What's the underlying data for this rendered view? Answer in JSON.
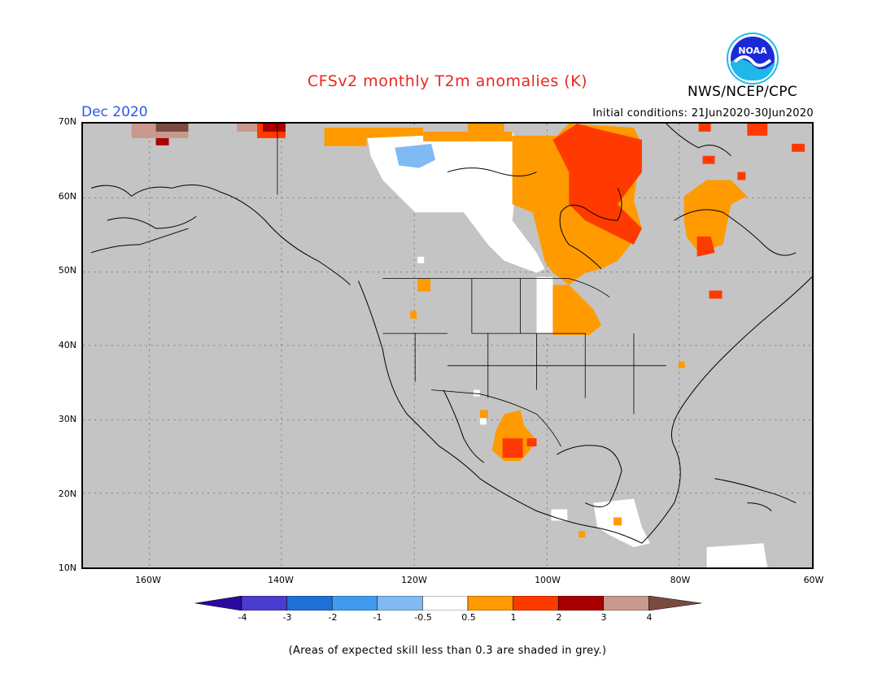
{
  "header": {
    "title": "CFSv2 monthly T2m anomalies (K)",
    "org": "NWS/NCEP/CPC",
    "logo_text": "NOAA",
    "month": "Dec 2020",
    "initial_conditions": "Initial conditions: 21Jun2020-30Jun2020"
  },
  "map": {
    "lat_labels": [
      "70N",
      "60N",
      "50N",
      "40N",
      "30N",
      "20N",
      "10N"
    ],
    "lon_labels": [
      "160W",
      "140W",
      "120W",
      "100W",
      "80W",
      "60W"
    ],
    "extent": {
      "lon_min": -170,
      "lon_max": -60,
      "lat_min": 10,
      "lat_max": 70
    },
    "land_color": "#c4c4c4"
  },
  "colorbar": {
    "labels": [
      "-4",
      "-3",
      "-2",
      "-1",
      "-0.5",
      "0.5",
      "1",
      "2",
      "3",
      "4"
    ],
    "colors": [
      "#2a0a9e",
      "#4a3ccf",
      "#1f6fd8",
      "#3f9bef",
      "#7fbaf2",
      "#ffffff",
      "#ff9a00",
      "#ff3a00",
      "#a80000",
      "#c8998c",
      "#7a4a40"
    ]
  },
  "footer": {
    "note": "(Areas of expected skill less than 0.3 are shaded in grey.)"
  }
}
